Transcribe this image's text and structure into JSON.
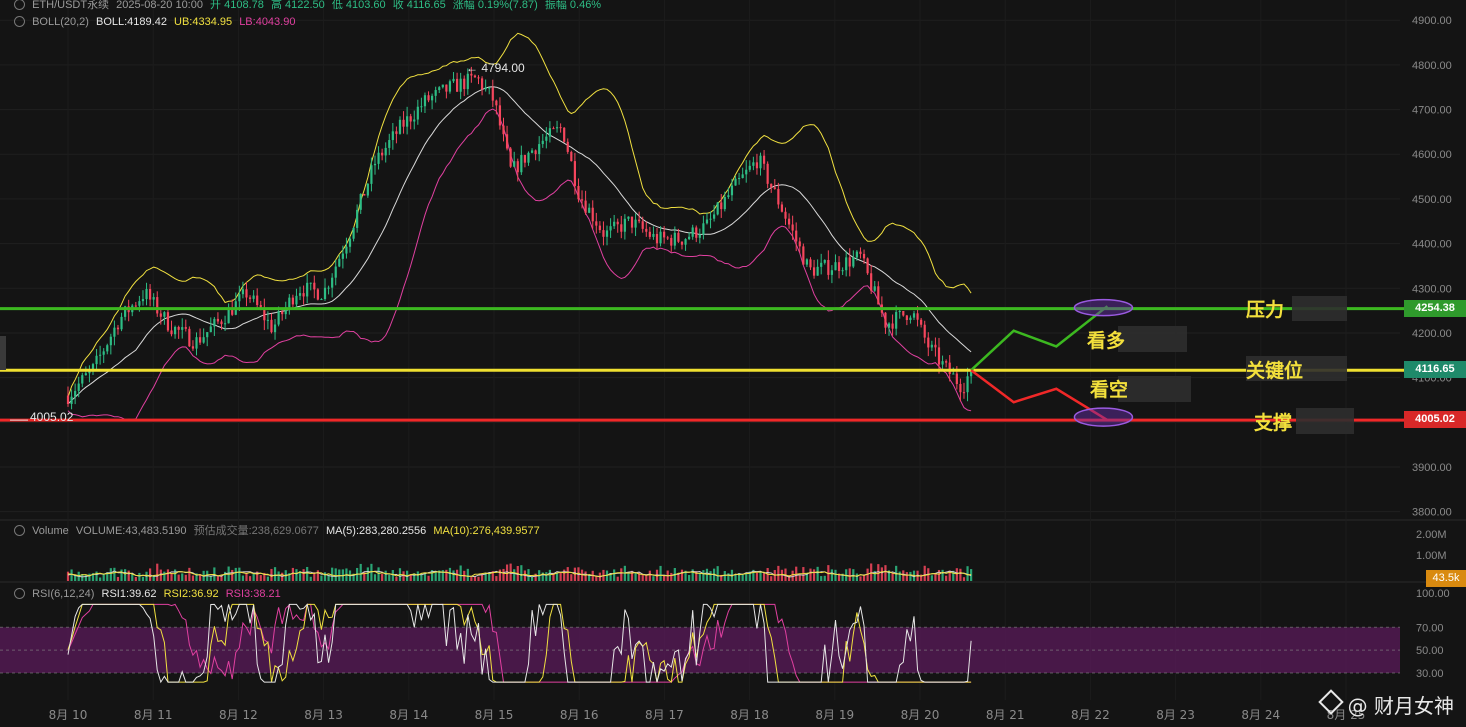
{
  "header": {
    "symbol": "ETH/USDT永续",
    "datetime": "2025-08-20 10:00",
    "open": "开 4108.78",
    "high": "高 4122.50",
    "low": "低 4103.60",
    "close": "收 4116.65",
    "change": "涨幅 0.19%(7.87)",
    "amplitude": "振幅 0.46%"
  },
  "boll": {
    "label": "BOLL(20,2)",
    "mid": "BOLL:4189.42",
    "ub": "UB:4334.95",
    "lb": "LB:4043.90"
  },
  "volume": {
    "label": "Volume",
    "value": "VOLUME:43,483.5190",
    "estimate": "预估成交量:238,629.0677",
    "ma5": "MA(5):283,280.2556",
    "ma10": "MA(10):276,439.9577",
    "axis_ticks": [
      "2.00M",
      "1.00M"
    ],
    "current_tag": "43.5k"
  },
  "rsi": {
    "label": "RSI(6,12,24)",
    "rsi1": "RSI1:39.62",
    "rsi2": "RSI2:36.92",
    "rsi3": "RSI3:38.21"
  },
  "annotations": {
    "resistance": "压力",
    "key_level": "关键位",
    "support": "支撑",
    "bullish": "看多",
    "bearish": "看空",
    "high_marker": "← 4794.00",
    "low_marker": "4005.02"
  },
  "price_tags": {
    "resistance": "4254.38",
    "current": "4116.65",
    "support": "4005.02"
  },
  "brand": "@ 财月女神",
  "colors": {
    "up": "#2ebd85",
    "down": "#f6465d",
    "boll_mid": "#d9d9d9",
    "boll_ub": "#f0e040",
    "boll_lb": "#e040a0",
    "resistance_line": "#3cb820",
    "key_line": "#f0e030",
    "support_line": "#f02828",
    "rsi_band": "#5a1a5a",
    "vol_ma5": "#d0d0d0",
    "vol_ma10": "#f0e040"
  },
  "chart_data": {
    "type": "candlestick",
    "interval": "1h",
    "x_ticks": [
      "8月 10",
      "8月 11",
      "8月 12",
      "8月 13",
      "8月 14",
      "8月 15",
      "8月 16",
      "8月 17",
      "8月 18",
      "8月 19",
      "8月 20",
      "8月 21",
      "8月 22",
      "8月 23",
      "8月 24",
      "8月 25"
    ],
    "y_ticks": [
      4900,
      4800,
      4700,
      4600,
      4500,
      4400,
      4300,
      4200,
      4100,
      4000,
      3900,
      3800
    ],
    "ylim": [
      3800,
      4920
    ],
    "close_path": [
      [
        0,
        4060
      ],
      [
        0.3,
        4120
      ],
      [
        0.6,
        4230
      ],
      [
        0.9,
        4290
      ],
      [
        1.2,
        4215
      ],
      [
        1.5,
        4180
      ],
      [
        1.8,
        4230
      ],
      [
        2.1,
        4290
      ],
      [
        2.4,
        4210
      ],
      [
        2.7,
        4300
      ],
      [
        3.0,
        4290
      ],
      [
        3.3,
        4420
      ],
      [
        3.6,
        4580
      ],
      [
        3.9,
        4660
      ],
      [
        4.2,
        4720
      ],
      [
        4.5,
        4750
      ],
      [
        4.8,
        4770
      ],
      [
        5.0,
        4720
      ],
      [
        5.2,
        4560
      ],
      [
        5.5,
        4620
      ],
      [
        5.8,
        4660
      ],
      [
        6.0,
        4510
      ],
      [
        6.3,
        4420
      ],
      [
        6.6,
        4450
      ],
      [
        6.9,
        4410
      ],
      [
        7.2,
        4410
      ],
      [
        7.5,
        4440
      ],
      [
        7.8,
        4520
      ],
      [
        8.1,
        4590
      ],
      [
        8.4,
        4470
      ],
      [
        8.7,
        4340
      ],
      [
        9.0,
        4350
      ],
      [
        9.3,
        4370
      ],
      [
        9.6,
        4220
      ],
      [
        9.9,
        4250
      ],
      [
        10.1,
        4170
      ],
      [
        10.3,
        4120
      ],
      [
        10.5,
        4080
      ],
      [
        10.6,
        4116.65
      ]
    ],
    "high_marker": 4794.0,
    "low_marker": 4005.02,
    "levels": {
      "resistance": 4254.38,
      "key": 4116.65,
      "support": 4005.02
    },
    "scenario_bull": [
      [
        10.6,
        4116.65
      ],
      [
        11.1,
        4205
      ],
      [
        11.6,
        4170
      ],
      [
        12.2,
        4260
      ]
    ],
    "scenario_bear": [
      [
        10.6,
        4116.65
      ],
      [
        11.1,
        4045
      ],
      [
        11.6,
        4075
      ],
      [
        12.2,
        4005
      ]
    ],
    "rsi_ticks": [
      100,
      70,
      50,
      30
    ],
    "rsi_band": [
      30,
      70
    ]
  }
}
